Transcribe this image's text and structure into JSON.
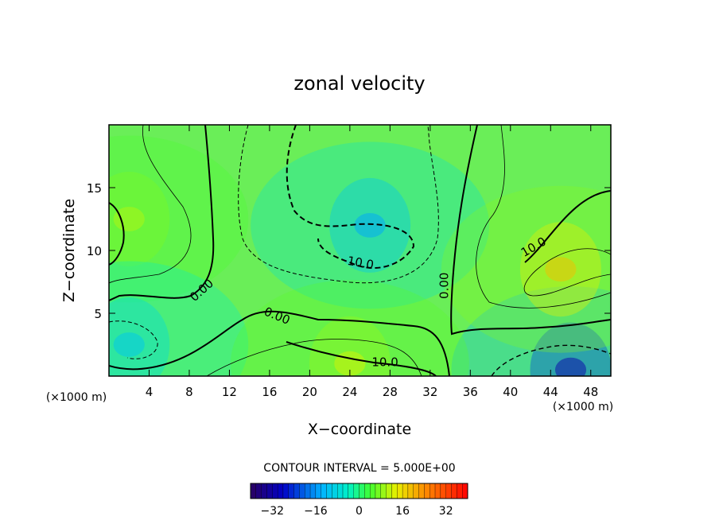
{
  "chart_data": {
    "type": "heatmap",
    "title": "zonal velocity",
    "xlabel": "X−coordinate",
    "ylabel": "Z−coordinate",
    "x_unit_left": "(×1000 m)",
    "x_unit_right": "(×1000 m)",
    "xlim": [
      0,
      50
    ],
    "ylim": [
      0,
      20
    ],
    "x_ticks": [
      4,
      8,
      12,
      16,
      20,
      24,
      28,
      32,
      36,
      40,
      44,
      48
    ],
    "y_ticks": [
      5,
      10,
      15
    ],
    "contour_interval_text": "CONTOUR INTERVAL = 5.000E+00",
    "contour_labels": [
      {
        "text": "0.00",
        "x": 9.5,
        "y": 6.6,
        "angle": -42
      },
      {
        "text": "0.00",
        "x": 16.6,
        "y": 4.5,
        "angle": 22
      },
      {
        "text": "0.00",
        "x": 33.8,
        "y": 7.2,
        "angle": -90
      },
      {
        "text": "10.0",
        "x": 25.0,
        "y": 8.7,
        "angle": 10
      },
      {
        "text": "10.0",
        "x": 27.5,
        "y": 0.8,
        "angle": 0
      },
      {
        "text": "10.0",
        "x": 42.5,
        "y": 10.0,
        "angle": -30
      }
    ],
    "colorbar": {
      "min": -40,
      "max": 40,
      "ticks": [
        -32,
        -16,
        0,
        16,
        32
      ]
    },
    "field_features": [
      {
        "x": 26,
        "y": 12,
        "value": -14
      },
      {
        "x": 46,
        "y": 0.5,
        "value": -30
      },
      {
        "x": 45,
        "y": 8.5,
        "value": 18
      },
      {
        "x": 2,
        "y": 12.5,
        "value": 10
      },
      {
        "x": 2,
        "y": 2.5,
        "value": -10
      },
      {
        "x": 24,
        "y": 1,
        "value": 12
      }
    ]
  }
}
